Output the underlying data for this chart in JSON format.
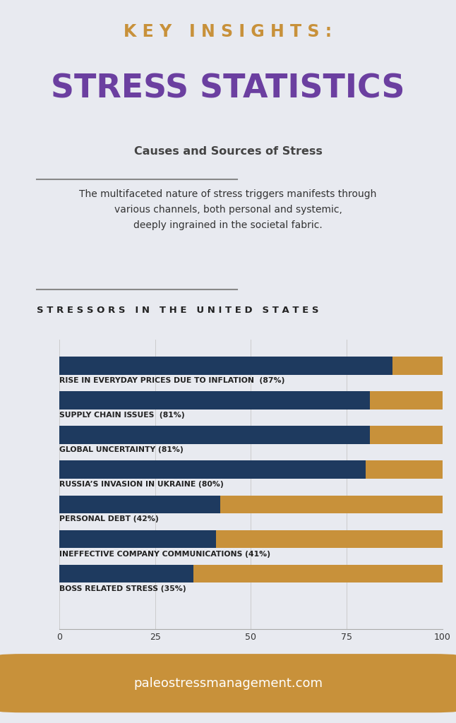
{
  "title_line1": "K E Y   I N S I G H T S :",
  "title_line2": "STRESS STATISTICS",
  "subtitle": "Causes and Sources of Stress",
  "description": "The multifaceted nature of stress triggers manifests through\nvarious channels, both personal and systemic,\ndeeply ingrained in the societal fabric.",
  "section_title": "S T R E S S O R S   I N   T H E   U N I T E D   S T A T E S",
  "categories": [
    "RISE IN EVERYDAY PRICES DUE TO INFLATION  (87%)",
    "SUPPLY CHAIN ISSUES  (81%)",
    "GLOBAL UNCERTAINTY (81%)",
    "RUSSIA’S INVASION IN UKRAINE (80%)",
    "PERSONAL DEBT (42%)",
    "INEFFECTIVE COMPANY COMMUNICATIONS (41%)",
    "BOSS RELATED STRESS (35%)"
  ],
  "values": [
    87,
    81,
    81,
    80,
    42,
    41,
    35
  ],
  "bar_color_dark": "#1e3a5f",
  "bar_color_light": "#c8913a",
  "background_color": "#e8eaf0",
  "title_color_line1": "#c8913a",
  "title_color_line2": "#6b3fa0",
  "subtitle_color": "#444444",
  "description_color": "#333333",
  "section_title_color": "#222222",
  "label_color": "#222222",
  "footer_text": "paleostressmanagement.com",
  "footer_bg": "#c8913a",
  "footer_text_color": "#ffffff",
  "xlim": [
    0,
    100
  ],
  "xticks": [
    0,
    25,
    50,
    75,
    100
  ]
}
